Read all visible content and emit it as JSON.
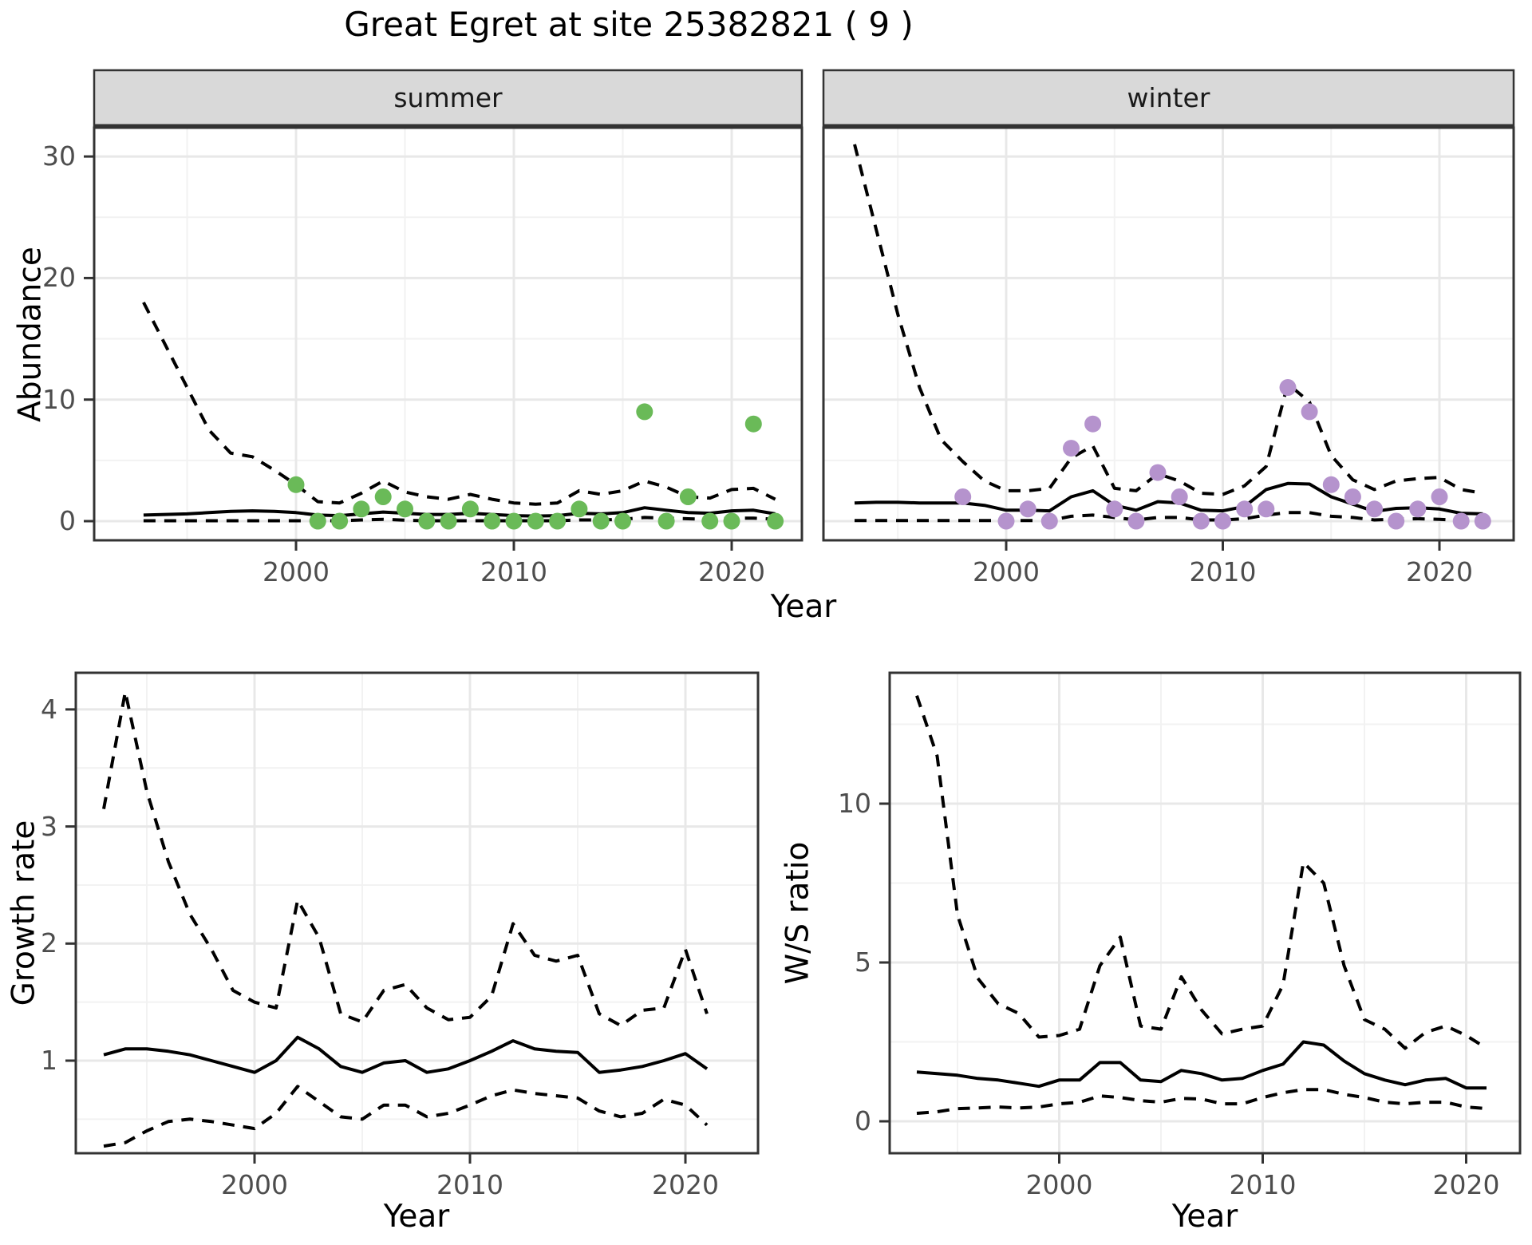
{
  "title": "Great Egret at site 25382821 ( 9 )",
  "strip_labels": [
    "summer",
    "winter"
  ],
  "axis_titles": {
    "abundance": "Abundance",
    "year": "Year"
  },
  "colors": {
    "point_summer": "#6ABA58",
    "point_winter": "#B593CD",
    "line": "#000000",
    "gridline_major": "#E8E8E8",
    "gridline_minor": "#F2F2F2",
    "strip_bg": "#D9D9D9",
    "panel_border": "#333333",
    "tick_text": "#4D4D4D"
  },
  "chart_data": {
    "summer": {
      "type": "line",
      "facet": "summer",
      "xlabel": "Year",
      "ylabel": "Abundance",
      "x_ticks": [
        2000,
        2010,
        2020
      ],
      "x_minor_ticks": [
        1995,
        2005,
        2015
      ],
      "y_ticks": [
        0,
        10,
        20,
        30
      ],
      "y_minor_ticks": [
        5,
        15,
        25
      ],
      "xlim": [
        1990.7,
        2023.2
      ],
      "ylim": [
        -1.6,
        32.4
      ],
      "grid": true,
      "observations": {
        "color": "#6ABA58",
        "years": [
          2000,
          2001,
          2002,
          2003,
          2004,
          2005,
          2006,
          2007,
          2008,
          2009,
          2010,
          2011,
          2012,
          2013,
          2014,
          2015,
          2016,
          2017,
          2018,
          2019,
          2020,
          2021,
          2022
        ],
        "values": [
          3,
          0,
          0,
          1,
          2,
          1,
          0,
          0,
          1,
          0,
          0,
          0,
          0,
          1,
          0,
          0,
          9,
          0,
          2,
          0,
          0,
          8,
          0
        ]
      },
      "series": [
        {
          "name": "upper-dashed",
          "style": "dashed",
          "years": [
            1993,
            1994,
            1995,
            1996,
            1997,
            1998,
            1999,
            2000,
            2001,
            2002,
            2003,
            2004,
            2005,
            2006,
            2007,
            2008,
            2009,
            2010,
            2011,
            2012,
            2013,
            2014,
            2015,
            2016,
            2017,
            2018,
            2019,
            2020,
            2021,
            2022
          ],
          "values": [
            18,
            14.5,
            11,
            7.5,
            5.6,
            5.3,
            4.2,
            3.0,
            1.6,
            1.5,
            2.3,
            3.3,
            2.4,
            2.0,
            1.8,
            2.2,
            1.8,
            1.5,
            1.4,
            1.5,
            2.5,
            2.2,
            2.5,
            3.3,
            2.8,
            2.0,
            1.9,
            2.6,
            2.7,
            1.8
          ]
        },
        {
          "name": "median-solid",
          "style": "solid",
          "years": [
            1993,
            1994,
            1995,
            1996,
            1997,
            1998,
            1999,
            2000,
            2001,
            2002,
            2003,
            2004,
            2005,
            2006,
            2007,
            2008,
            2009,
            2010,
            2011,
            2012,
            2013,
            2014,
            2015,
            2016,
            2017,
            2018,
            2019,
            2020,
            2021,
            2022
          ],
          "values": [
            0.5,
            0.55,
            0.6,
            0.7,
            0.8,
            0.85,
            0.8,
            0.7,
            0.5,
            0.45,
            0.6,
            0.75,
            0.65,
            0.55,
            0.55,
            0.65,
            0.55,
            0.45,
            0.42,
            0.45,
            0.65,
            0.6,
            0.7,
            1.1,
            0.9,
            0.7,
            0.65,
            0.85,
            0.9,
            0.6
          ]
        },
        {
          "name": "lower-dashed",
          "style": "dashed",
          "years": [
            1993,
            1994,
            1995,
            1996,
            1997,
            1998,
            1999,
            2000,
            2001,
            2002,
            2003,
            2004,
            2005,
            2006,
            2007,
            2008,
            2009,
            2010,
            2011,
            2012,
            2013,
            2014,
            2015,
            2016,
            2017,
            2018,
            2019,
            2020,
            2021,
            2022
          ],
          "values": [
            0.03,
            0.03,
            0.03,
            0.03,
            0.03,
            0.03,
            0.03,
            0.03,
            0.03,
            0.03,
            0.1,
            0.15,
            0.08,
            0.03,
            0.03,
            0.03,
            0.03,
            0.03,
            0.03,
            0.03,
            0.1,
            0.1,
            0.15,
            0.3,
            0.25,
            0.2,
            0.15,
            0.25,
            0.25,
            0.15
          ]
        }
      ]
    },
    "winter": {
      "type": "line",
      "facet": "winter",
      "xlabel": "Year",
      "ylabel": "Abundance",
      "x_ticks": [
        2000,
        2010,
        2020
      ],
      "x_minor_ticks": [
        1995,
        2005,
        2015
      ],
      "y_ticks": [
        0,
        10,
        20,
        30
      ],
      "y_minor_ticks": [
        5,
        15,
        25
      ],
      "xlim": [
        1991.5,
        2023.4
      ],
      "ylim": [
        -1.6,
        32.4
      ],
      "grid": true,
      "observations": {
        "color": "#B593CD",
        "years": [
          1998,
          2000,
          2001,
          2002,
          2003,
          2004,
          2005,
          2006,
          2007,
          2008,
          2009,
          2010,
          2011,
          2012,
          2013,
          2014,
          2015,
          2016,
          2017,
          2018,
          2019,
          2020,
          2021,
          2022
        ],
        "values": [
          2,
          0,
          1,
          0,
          6,
          8,
          1,
          0,
          4,
          2,
          0,
          0,
          1,
          1,
          11,
          9,
          3,
          2,
          1,
          0,
          1,
          2,
          0,
          0
        ]
      },
      "series": [
        {
          "name": "upper-dashed",
          "style": "dashed",
          "years": [
            1993,
            1994,
            1995,
            1996,
            1997,
            1998,
            1999,
            2000,
            2001,
            2002,
            2003,
            2004,
            2005,
            2006,
            2007,
            2008,
            2009,
            2010,
            2011,
            2012,
            2013,
            2014,
            2015,
            2016,
            2017,
            2018,
            2019,
            2020,
            2021,
            2022
          ],
          "values": [
            31,
            24,
            17,
            11,
            6.7,
            4.9,
            3.3,
            2.5,
            2.5,
            2.7,
            5.2,
            6.2,
            2.7,
            2.5,
            3.9,
            3.3,
            2.3,
            2.2,
            2.9,
            4.5,
            11.3,
            9.8,
            5.4,
            3.4,
            2.6,
            3.3,
            3.5,
            3.6,
            2.6,
            2.3
          ]
        },
        {
          "name": "median-solid",
          "style": "solid",
          "years": [
            1993,
            1994,
            1995,
            1996,
            1997,
            1998,
            1999,
            2000,
            2001,
            2002,
            2003,
            2004,
            2005,
            2006,
            2007,
            2008,
            2009,
            2010,
            2011,
            2012,
            2013,
            2014,
            2015,
            2016,
            2017,
            2018,
            2019,
            2020,
            2021,
            2022
          ],
          "values": [
            1.5,
            1.55,
            1.55,
            1.5,
            1.5,
            1.5,
            1.3,
            0.9,
            0.9,
            0.85,
            2.0,
            2.5,
            1.3,
            0.9,
            1.6,
            1.5,
            0.9,
            0.85,
            1.2,
            2.6,
            3.1,
            3.05,
            2.0,
            1.4,
            0.8,
            1.05,
            1.1,
            1.0,
            0.65,
            0.6
          ]
        },
        {
          "name": "lower-dashed",
          "style": "dashed",
          "years": [
            1993,
            1994,
            1995,
            1996,
            1997,
            1998,
            1999,
            2000,
            2001,
            2002,
            2003,
            2004,
            2005,
            2006,
            2007,
            2008,
            2009,
            2010,
            2011,
            2012,
            2013,
            2014,
            2015,
            2016,
            2017,
            2018,
            2019,
            2020,
            2021,
            2022
          ],
          "values": [
            0.05,
            0.05,
            0.05,
            0.05,
            0.05,
            0.05,
            0.05,
            0.05,
            0.05,
            0.05,
            0.4,
            0.5,
            0.3,
            0.1,
            0.3,
            0.3,
            0.1,
            0.1,
            0.2,
            0.5,
            0.7,
            0.7,
            0.4,
            0.3,
            0.1,
            0.15,
            0.2,
            0.15,
            0.05,
            0.05
          ]
        }
      ]
    },
    "growth": {
      "type": "line",
      "facet": null,
      "xlabel": "Year",
      "ylabel": "Growth rate",
      "x_ticks": [
        2000,
        2010,
        2020
      ],
      "x_minor_ticks": [
        1995,
        2005,
        2015
      ],
      "y_ticks": [
        1,
        2,
        3,
        4
      ],
      "y_minor_ticks": [
        0.5,
        1.5,
        2.5,
        3.5
      ],
      "xlim": [
        1990.7,
        2023.3
      ],
      "ylim": [
        0.25,
        4.35
      ],
      "grid": true,
      "series": [
        {
          "name": "upper-dashed",
          "style": "dashed",
          "years": [
            1993,
            1994,
            1995,
            1996,
            1997,
            1998,
            1999,
            2000,
            2001,
            2002,
            2003,
            2004,
            2005,
            2006,
            2007,
            2008,
            2009,
            2010,
            2011,
            2012,
            2013,
            2014,
            2015,
            2016,
            2017,
            2018,
            2019,
            2020,
            2021
          ],
          "values": [
            3.15,
            4.15,
            3.3,
            2.7,
            2.25,
            1.95,
            1.6,
            1.5,
            1.45,
            2.37,
            2.05,
            1.4,
            1.33,
            1.6,
            1.65,
            1.45,
            1.35,
            1.37,
            1.55,
            2.17,
            1.9,
            1.85,
            1.9,
            1.4,
            1.3,
            1.43,
            1.45,
            1.95,
            1.4
          ]
        },
        {
          "name": "median-solid",
          "style": "solid",
          "years": [
            1993,
            1994,
            1995,
            1996,
            1997,
            1998,
            1999,
            2000,
            2001,
            2002,
            2003,
            2004,
            2005,
            2006,
            2007,
            2008,
            2009,
            2010,
            2011,
            2012,
            2013,
            2014,
            2015,
            2016,
            2017,
            2018,
            2019,
            2020,
            2021
          ],
          "values": [
            1.05,
            1.1,
            1.1,
            1.08,
            1.05,
            1.0,
            0.95,
            0.9,
            1.0,
            1.2,
            1.1,
            0.95,
            0.9,
            0.98,
            1.0,
            0.9,
            0.93,
            1.0,
            1.08,
            1.17,
            1.1,
            1.08,
            1.07,
            0.9,
            0.92,
            0.95,
            1.0,
            1.06,
            0.93
          ]
        },
        {
          "name": "lower-dashed",
          "style": "dashed",
          "years": [
            1993,
            1994,
            1995,
            1996,
            1997,
            1998,
            1999,
            2000,
            2001,
            2002,
            2003,
            2004,
            2005,
            2006,
            2007,
            2008,
            2009,
            2010,
            2011,
            2012,
            2013,
            2014,
            2015,
            2016,
            2017,
            2018,
            2019,
            2020,
            2021
          ],
          "values": [
            0.27,
            0.3,
            0.4,
            0.48,
            0.5,
            0.48,
            0.45,
            0.42,
            0.55,
            0.78,
            0.65,
            0.52,
            0.5,
            0.62,
            0.62,
            0.52,
            0.55,
            0.62,
            0.7,
            0.75,
            0.72,
            0.7,
            0.68,
            0.57,
            0.52,
            0.55,
            0.67,
            0.62,
            0.45
          ]
        }
      ]
    },
    "ws": {
      "type": "line",
      "facet": null,
      "xlabel": "Year",
      "ylabel": "W/S ratio",
      "x_ticks": [
        2000,
        2010,
        2020
      ],
      "x_minor_ticks": [
        1995,
        2005,
        2015
      ],
      "y_ticks": [
        0,
        5,
        10
      ],
      "y_minor_ticks": [
        2.5,
        7.5,
        12.5
      ],
      "xlim": [
        1991.6,
        2022.6
      ],
      "ylim": [
        -0.9,
        14.1
      ],
      "grid": true,
      "series": [
        {
          "name": "upper-dashed",
          "style": "dashed",
          "years": [
            1993,
            1994,
            1995,
            1996,
            1997,
            1998,
            1999,
            2000,
            2001,
            2002,
            2003,
            2004,
            2005,
            2006,
            2007,
            2008,
            2009,
            2010,
            2011,
            2012,
            2013,
            2014,
            2015,
            2016,
            2017,
            2018,
            2019,
            2020,
            2021
          ],
          "values": [
            13.4,
            11.5,
            6.5,
            4.5,
            3.7,
            3.4,
            2.65,
            2.7,
            2.9,
            4.9,
            5.8,
            3.0,
            2.9,
            4.55,
            3.5,
            2.75,
            2.9,
            3.0,
            4.3,
            8.15,
            7.5,
            4.9,
            3.2,
            2.9,
            2.3,
            2.8,
            3.0,
            2.7,
            2.3
          ]
        },
        {
          "name": "median-solid",
          "style": "solid",
          "years": [
            1993,
            1994,
            1995,
            1996,
            1997,
            1998,
            1999,
            2000,
            2001,
            2002,
            2003,
            2004,
            2005,
            2006,
            2007,
            2008,
            2009,
            2010,
            2011,
            2012,
            2013,
            2014,
            2015,
            2016,
            2017,
            2018,
            2019,
            2020,
            2021
          ],
          "values": [
            1.55,
            1.5,
            1.45,
            1.35,
            1.3,
            1.2,
            1.1,
            1.3,
            1.3,
            1.85,
            1.85,
            1.3,
            1.25,
            1.6,
            1.5,
            1.3,
            1.35,
            1.6,
            1.8,
            2.5,
            2.4,
            1.9,
            1.5,
            1.3,
            1.15,
            1.3,
            1.35,
            1.05,
            1.05
          ]
        },
        {
          "name": "lower-dashed",
          "style": "dashed",
          "years": [
            1993,
            1994,
            1995,
            1996,
            1997,
            1998,
            1999,
            2000,
            2001,
            2002,
            2003,
            2004,
            2005,
            2006,
            2007,
            2008,
            2009,
            2010,
            2011,
            2012,
            2013,
            2014,
            2015,
            2016,
            2017,
            2018,
            2019,
            2020,
            2021
          ],
          "values": [
            0.25,
            0.3,
            0.4,
            0.42,
            0.45,
            0.42,
            0.45,
            0.55,
            0.6,
            0.8,
            0.75,
            0.65,
            0.6,
            0.72,
            0.7,
            0.55,
            0.55,
            0.75,
            0.9,
            1.0,
            1.0,
            0.85,
            0.75,
            0.6,
            0.55,
            0.6,
            0.6,
            0.45,
            0.4
          ]
        }
      ]
    }
  }
}
